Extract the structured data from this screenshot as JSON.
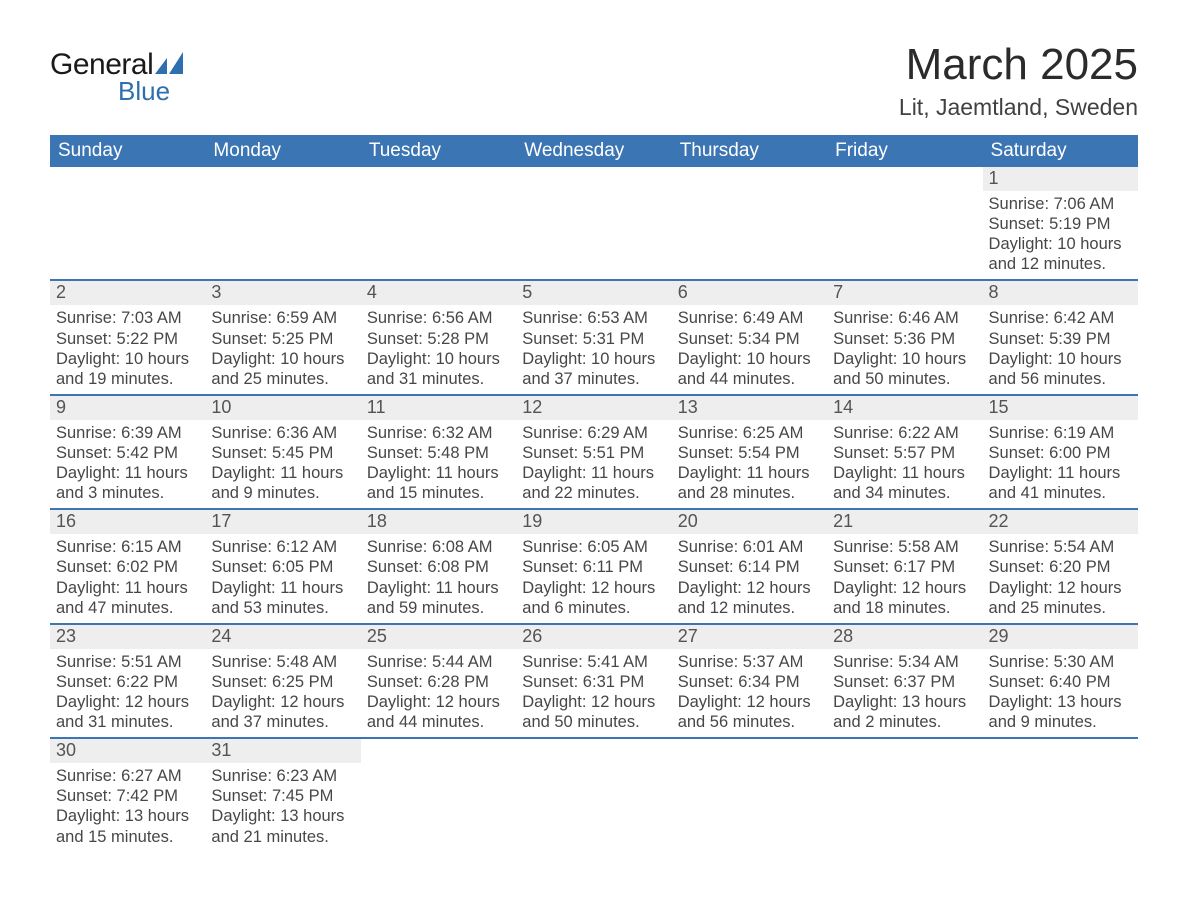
{
  "brand": {
    "part1": "General",
    "part2": "Blue",
    "accent_color": "#2f6fb0"
  },
  "title": "March 2025",
  "location": "Lit, Jaemtland, Sweden",
  "colors": {
    "header_bg": "#3b75b3",
    "header_text": "#ffffff",
    "daynum_bg": "#eeeeee",
    "row_border": "#3b75b3",
    "body_text": "#474747"
  },
  "typography": {
    "title_fontsize": 44,
    "location_fontsize": 23,
    "weekday_fontsize": 19,
    "cell_fontsize": 16.5
  },
  "weekdays": [
    "Sunday",
    "Monday",
    "Tuesday",
    "Wednesday",
    "Thursday",
    "Friday",
    "Saturday"
  ],
  "weeks": [
    [
      null,
      null,
      null,
      null,
      null,
      null,
      {
        "n": "1",
        "sunrise": "Sunrise: 7:06 AM",
        "sunset": "Sunset: 5:19 PM",
        "day1": "Daylight: 10 hours",
        "day2": "and 12 minutes."
      }
    ],
    [
      {
        "n": "2",
        "sunrise": "Sunrise: 7:03 AM",
        "sunset": "Sunset: 5:22 PM",
        "day1": "Daylight: 10 hours",
        "day2": "and 19 minutes."
      },
      {
        "n": "3",
        "sunrise": "Sunrise: 6:59 AM",
        "sunset": "Sunset: 5:25 PM",
        "day1": "Daylight: 10 hours",
        "day2": "and 25 minutes."
      },
      {
        "n": "4",
        "sunrise": "Sunrise: 6:56 AM",
        "sunset": "Sunset: 5:28 PM",
        "day1": "Daylight: 10 hours",
        "day2": "and 31 minutes."
      },
      {
        "n": "5",
        "sunrise": "Sunrise: 6:53 AM",
        "sunset": "Sunset: 5:31 PM",
        "day1": "Daylight: 10 hours",
        "day2": "and 37 minutes."
      },
      {
        "n": "6",
        "sunrise": "Sunrise: 6:49 AM",
        "sunset": "Sunset: 5:34 PM",
        "day1": "Daylight: 10 hours",
        "day2": "and 44 minutes."
      },
      {
        "n": "7",
        "sunrise": "Sunrise: 6:46 AM",
        "sunset": "Sunset: 5:36 PM",
        "day1": "Daylight: 10 hours",
        "day2": "and 50 minutes."
      },
      {
        "n": "8",
        "sunrise": "Sunrise: 6:42 AM",
        "sunset": "Sunset: 5:39 PM",
        "day1": "Daylight: 10 hours",
        "day2": "and 56 minutes."
      }
    ],
    [
      {
        "n": "9",
        "sunrise": "Sunrise: 6:39 AM",
        "sunset": "Sunset: 5:42 PM",
        "day1": "Daylight: 11 hours",
        "day2": "and 3 minutes."
      },
      {
        "n": "10",
        "sunrise": "Sunrise: 6:36 AM",
        "sunset": "Sunset: 5:45 PM",
        "day1": "Daylight: 11 hours",
        "day2": "and 9 minutes."
      },
      {
        "n": "11",
        "sunrise": "Sunrise: 6:32 AM",
        "sunset": "Sunset: 5:48 PM",
        "day1": "Daylight: 11 hours",
        "day2": "and 15 minutes."
      },
      {
        "n": "12",
        "sunrise": "Sunrise: 6:29 AM",
        "sunset": "Sunset: 5:51 PM",
        "day1": "Daylight: 11 hours",
        "day2": "and 22 minutes."
      },
      {
        "n": "13",
        "sunrise": "Sunrise: 6:25 AM",
        "sunset": "Sunset: 5:54 PM",
        "day1": "Daylight: 11 hours",
        "day2": "and 28 minutes."
      },
      {
        "n": "14",
        "sunrise": "Sunrise: 6:22 AM",
        "sunset": "Sunset: 5:57 PM",
        "day1": "Daylight: 11 hours",
        "day2": "and 34 minutes."
      },
      {
        "n": "15",
        "sunrise": "Sunrise: 6:19 AM",
        "sunset": "Sunset: 6:00 PM",
        "day1": "Daylight: 11 hours",
        "day2": "and 41 minutes."
      }
    ],
    [
      {
        "n": "16",
        "sunrise": "Sunrise: 6:15 AM",
        "sunset": "Sunset: 6:02 PM",
        "day1": "Daylight: 11 hours",
        "day2": "and 47 minutes."
      },
      {
        "n": "17",
        "sunrise": "Sunrise: 6:12 AM",
        "sunset": "Sunset: 6:05 PM",
        "day1": "Daylight: 11 hours",
        "day2": "and 53 minutes."
      },
      {
        "n": "18",
        "sunrise": "Sunrise: 6:08 AM",
        "sunset": "Sunset: 6:08 PM",
        "day1": "Daylight: 11 hours",
        "day2": "and 59 minutes."
      },
      {
        "n": "19",
        "sunrise": "Sunrise: 6:05 AM",
        "sunset": "Sunset: 6:11 PM",
        "day1": "Daylight: 12 hours",
        "day2": "and 6 minutes."
      },
      {
        "n": "20",
        "sunrise": "Sunrise: 6:01 AM",
        "sunset": "Sunset: 6:14 PM",
        "day1": "Daylight: 12 hours",
        "day2": "and 12 minutes."
      },
      {
        "n": "21",
        "sunrise": "Sunrise: 5:58 AM",
        "sunset": "Sunset: 6:17 PM",
        "day1": "Daylight: 12 hours",
        "day2": "and 18 minutes."
      },
      {
        "n": "22",
        "sunrise": "Sunrise: 5:54 AM",
        "sunset": "Sunset: 6:20 PM",
        "day1": "Daylight: 12 hours",
        "day2": "and 25 minutes."
      }
    ],
    [
      {
        "n": "23",
        "sunrise": "Sunrise: 5:51 AM",
        "sunset": "Sunset: 6:22 PM",
        "day1": "Daylight: 12 hours",
        "day2": "and 31 minutes."
      },
      {
        "n": "24",
        "sunrise": "Sunrise: 5:48 AM",
        "sunset": "Sunset: 6:25 PM",
        "day1": "Daylight: 12 hours",
        "day2": "and 37 minutes."
      },
      {
        "n": "25",
        "sunrise": "Sunrise: 5:44 AM",
        "sunset": "Sunset: 6:28 PM",
        "day1": "Daylight: 12 hours",
        "day2": "and 44 minutes."
      },
      {
        "n": "26",
        "sunrise": "Sunrise: 5:41 AM",
        "sunset": "Sunset: 6:31 PM",
        "day1": "Daylight: 12 hours",
        "day2": "and 50 minutes."
      },
      {
        "n": "27",
        "sunrise": "Sunrise: 5:37 AM",
        "sunset": "Sunset: 6:34 PM",
        "day1": "Daylight: 12 hours",
        "day2": "and 56 minutes."
      },
      {
        "n": "28",
        "sunrise": "Sunrise: 5:34 AM",
        "sunset": "Sunset: 6:37 PM",
        "day1": "Daylight: 13 hours",
        "day2": "and 2 minutes."
      },
      {
        "n": "29",
        "sunrise": "Sunrise: 5:30 AM",
        "sunset": "Sunset: 6:40 PM",
        "day1": "Daylight: 13 hours",
        "day2": "and 9 minutes."
      }
    ],
    [
      {
        "n": "30",
        "sunrise": "Sunrise: 6:27 AM",
        "sunset": "Sunset: 7:42 PM",
        "day1": "Daylight: 13 hours",
        "day2": "and 15 minutes."
      },
      {
        "n": "31",
        "sunrise": "Sunrise: 6:23 AM",
        "sunset": "Sunset: 7:45 PM",
        "day1": "Daylight: 13 hours",
        "day2": "and 21 minutes."
      },
      null,
      null,
      null,
      null,
      null
    ]
  ]
}
